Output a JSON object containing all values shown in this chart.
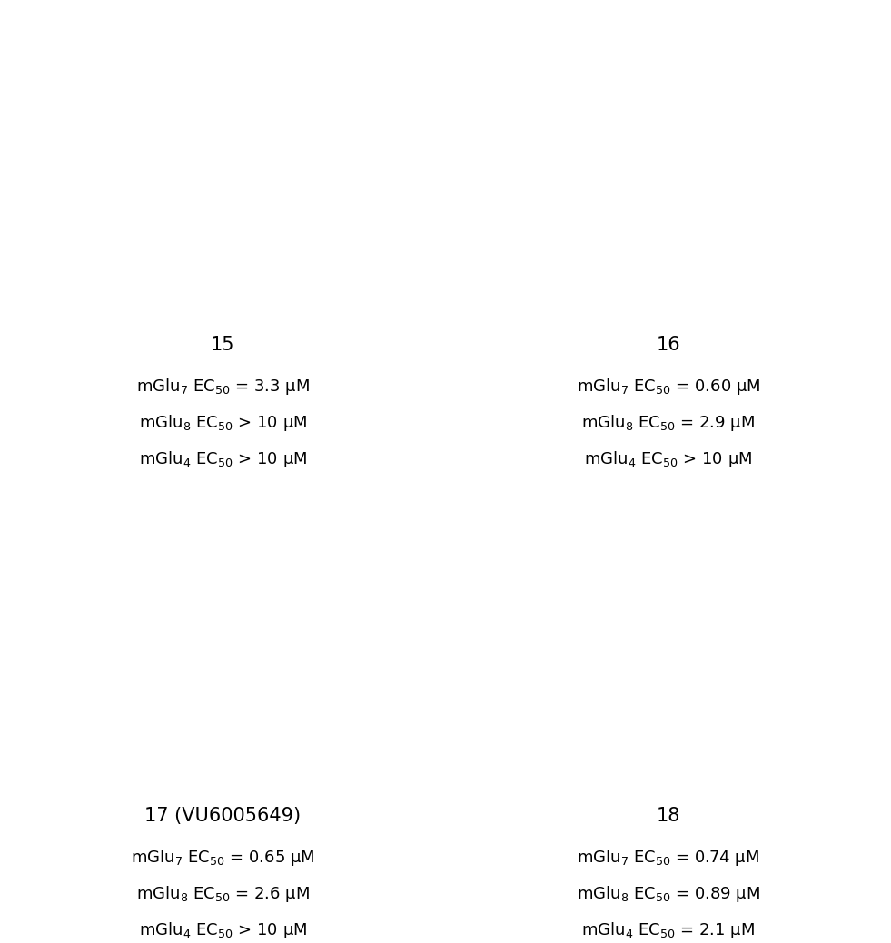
{
  "compounds": [
    {
      "id": "15",
      "label": "15",
      "ec50_line1": "mGlu$_7$ EC$_{50}$ = 3.3 μM",
      "ec50_line2": "mGlu$_8$ EC$_{50}$ > 10 μM",
      "ec50_line3": "mGlu$_4$ EC$_{50}$ > 10 μM"
    },
    {
      "id": "16",
      "label": "16",
      "ec50_line1": "mGlu$_7$ EC$_{50}$ = 0.60 μM",
      "ec50_line2": "mGlu$_8$ EC$_{50}$ = 2.9 μM",
      "ec50_line3": "mGlu$_4$ EC$_{50}$ > 10 μM"
    },
    {
      "id": "17",
      "label": "17 (VU6005649)",
      "ec50_line1": "mGlu$_7$ EC$_{50}$ = 0.65 μM",
      "ec50_line2": "mGlu$_8$ EC$_{50}$ = 2.6 μM",
      "ec50_line3": "mGlu$_4$ EC$_{50}$ > 10 μM"
    },
    {
      "id": "18",
      "label": "18",
      "ec50_line1": "mGlu$_7$ EC$_{50}$ = 0.74 μM",
      "ec50_line2": "mGlu$_8$ EC$_{50}$ = 0.89 μM",
      "ec50_line3": "mGlu$_4$ EC$_{50}$ = 2.1 μM"
    }
  ],
  "figsize": [
    9.81,
    10.39
  ],
  "dpi": 100,
  "background_color": "#ffffff",
  "text_color": "#000000",
  "label_fontsize": 15,
  "ec50_fontsize": 13
}
